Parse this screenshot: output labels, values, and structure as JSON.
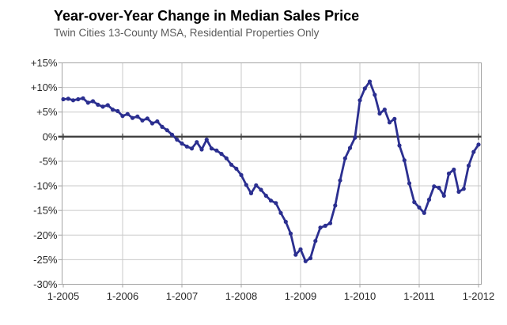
{
  "header": {
    "title": "Year-over-Year Change in Median Sales Price",
    "subtitle": "Twin Cities 13-County MSA, Residential Properties Only"
  },
  "chart_data": {
    "type": "line",
    "title": "Year-over-Year Change in Median Sales Price",
    "subtitle": "Twin Cities 13-County MSA, Residential Properties Only",
    "x_start_month": "1-2005",
    "x_end_month": "1-2012",
    "x_frequency": "monthly",
    "x_tick_labels": [
      "1-2005",
      "1-2006",
      "1-2007",
      "1-2008",
      "1-2009",
      "1-2010",
      "1-2011",
      "1-2012"
    ],
    "y_tick_labels": [
      "+15%",
      "+10%",
      "+5%",
      "0%",
      "-5%",
      "-10%",
      "-15%",
      "-20%",
      "-25%",
      "-30%"
    ],
    "ylim": [
      -30,
      15
    ],
    "y_tick_step": 5,
    "grid": true,
    "zero_axis_emphasized": true,
    "legend_position": "none",
    "series": [
      {
        "name": "YoY change in median sales price (%)",
        "color": "#2b2f90",
        "marker": "circle",
        "values": [
          7.6,
          7.7,
          7.4,
          7.6,
          7.8,
          6.9,
          7.2,
          6.5,
          6.1,
          6.4,
          5.5,
          5.2,
          4.2,
          4.6,
          3.8,
          4.1,
          3.3,
          3.7,
          2.7,
          3.1,
          2.0,
          1.3,
          0.4,
          -0.6,
          -1.4,
          -2.0,
          -2.4,
          -1.1,
          -2.6,
          -0.6,
          -2.4,
          -2.8,
          -3.5,
          -4.4,
          -5.7,
          -6.5,
          -7.8,
          -9.8,
          -11.5,
          -9.9,
          -10.8,
          -12.0,
          -13.0,
          -13.5,
          -15.5,
          -17.3,
          -19.7,
          -24.0,
          -22.9,
          -25.3,
          -24.7,
          -21.2,
          -18.5,
          -18.1,
          -17.6,
          -14.0,
          -8.9,
          -4.4,
          -2.3,
          -0.2,
          7.4,
          9.8,
          11.2,
          8.5,
          4.7,
          5.5,
          2.9,
          3.6,
          -1.8,
          -4.8,
          -9.5,
          -13.3,
          -14.4,
          -15.5,
          -12.8,
          -10.1,
          -10.4,
          -12.0,
          -7.5,
          -6.7,
          -11.2,
          -10.6,
          -5.9,
          -3.1,
          -1.6
        ]
      }
    ],
    "colors": {
      "line": "#2b2f90",
      "zero_line": "#404040",
      "gridline": "#c9c9c9",
      "plot_border": "#a3a3a3",
      "tick_label": "#262626",
      "subtitle": "#595959"
    }
  }
}
